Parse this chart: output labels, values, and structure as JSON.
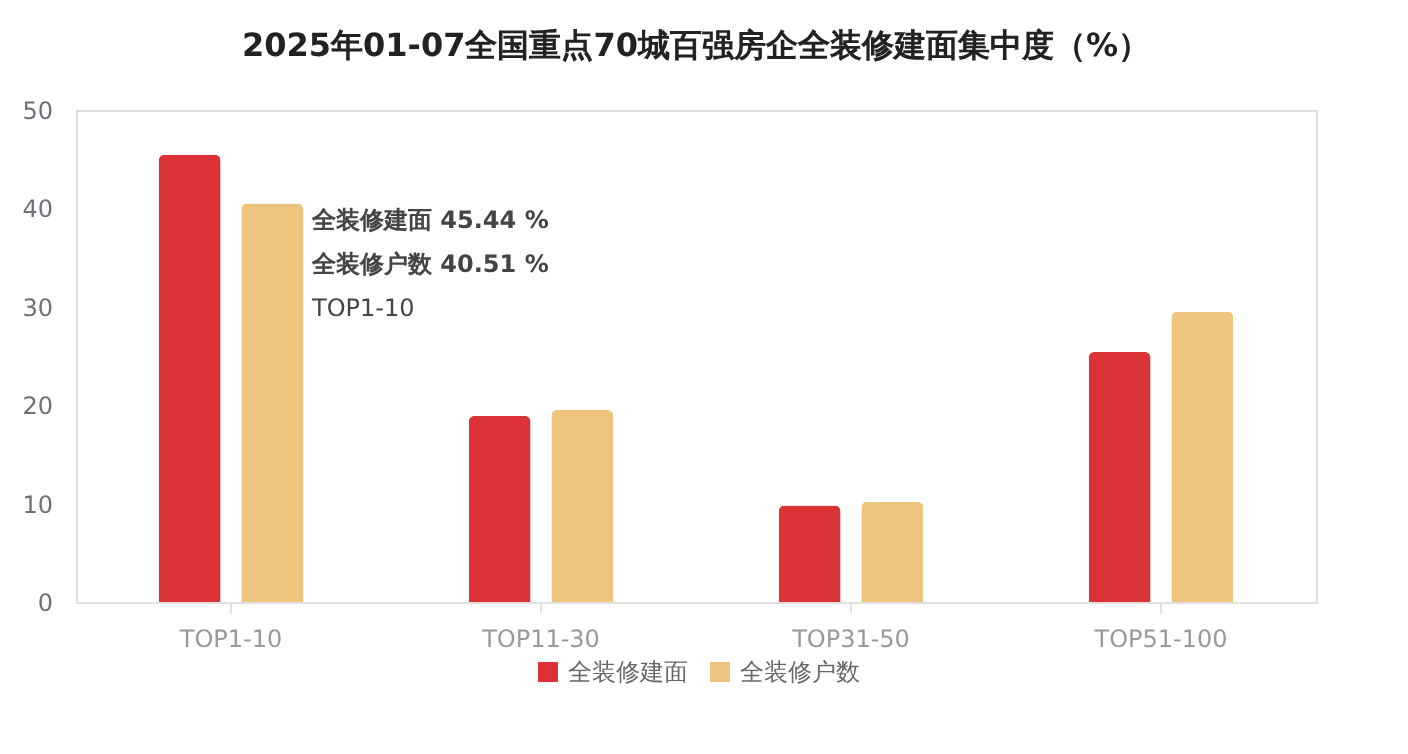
{
  "chart_data": {
    "type": "bar",
    "title": "2025年01-07全国重点70城百强房企全装修建面集中度（%）",
    "categories": [
      "TOP1-10",
      "TOP11-30",
      "TOP31-50",
      "TOP51-100"
    ],
    "series": [
      {
        "name": "全装修建面",
        "color": "#da3235",
        "values": [
          45.44,
          18.9,
          9.8,
          25.4
        ]
      },
      {
        "name": "全装修户数",
        "color": "#efc47f",
        "values": [
          40.51,
          19.5,
          10.2,
          29.5
        ]
      }
    ],
    "ylim": [
      0,
      50
    ],
    "yticks": [
      0,
      10,
      20,
      30,
      40,
      50
    ],
    "grid": false,
    "legend": "bottom",
    "annotations": [
      "全装修建面 45.44 %",
      "全装修户数 40.51 %",
      "TOP1-10"
    ]
  }
}
